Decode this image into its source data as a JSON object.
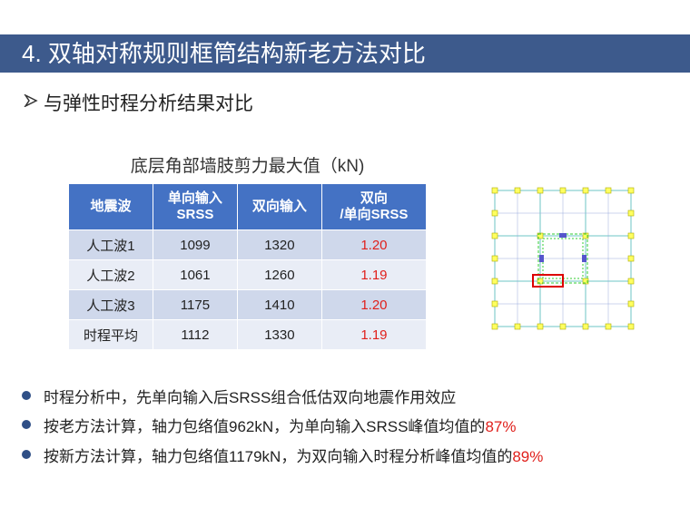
{
  "header": {
    "title": "4. 双轴对称规则框筒结构新老方法对比"
  },
  "subtitle": "与弹性时程分析结果对比",
  "table": {
    "caption": "底层角部墙肢剪力最大值（kN)",
    "columns": [
      [
        "地震波"
      ],
      [
        "单向输入",
        "SRSS"
      ],
      [
        "双向输入"
      ],
      [
        "双向",
        "/单向SRSS"
      ]
    ],
    "rows": [
      [
        "人工波1",
        "1099",
        "1320",
        "1.20"
      ],
      [
        "人工波2",
        "1061",
        "1260",
        "1.19"
      ],
      [
        "人工波3",
        "1175",
        "1410",
        "1.20"
      ],
      [
        "时程平均",
        "1112",
        "1330",
        "1.19"
      ]
    ]
  },
  "bullets": [
    {
      "text": "时程分析中，先单向输入后SRSS组合低估双向地震作用效应"
    },
    {
      "text": "按老方法计算，轴力包络值962kN，为单向输入SRSS峰值均值的",
      "highlight": "87%"
    },
    {
      "text": "按新方法计算，轴力包络值1179kN，为双向输入时程分析峰值均值的",
      "highlight": "89%"
    }
  ]
}
